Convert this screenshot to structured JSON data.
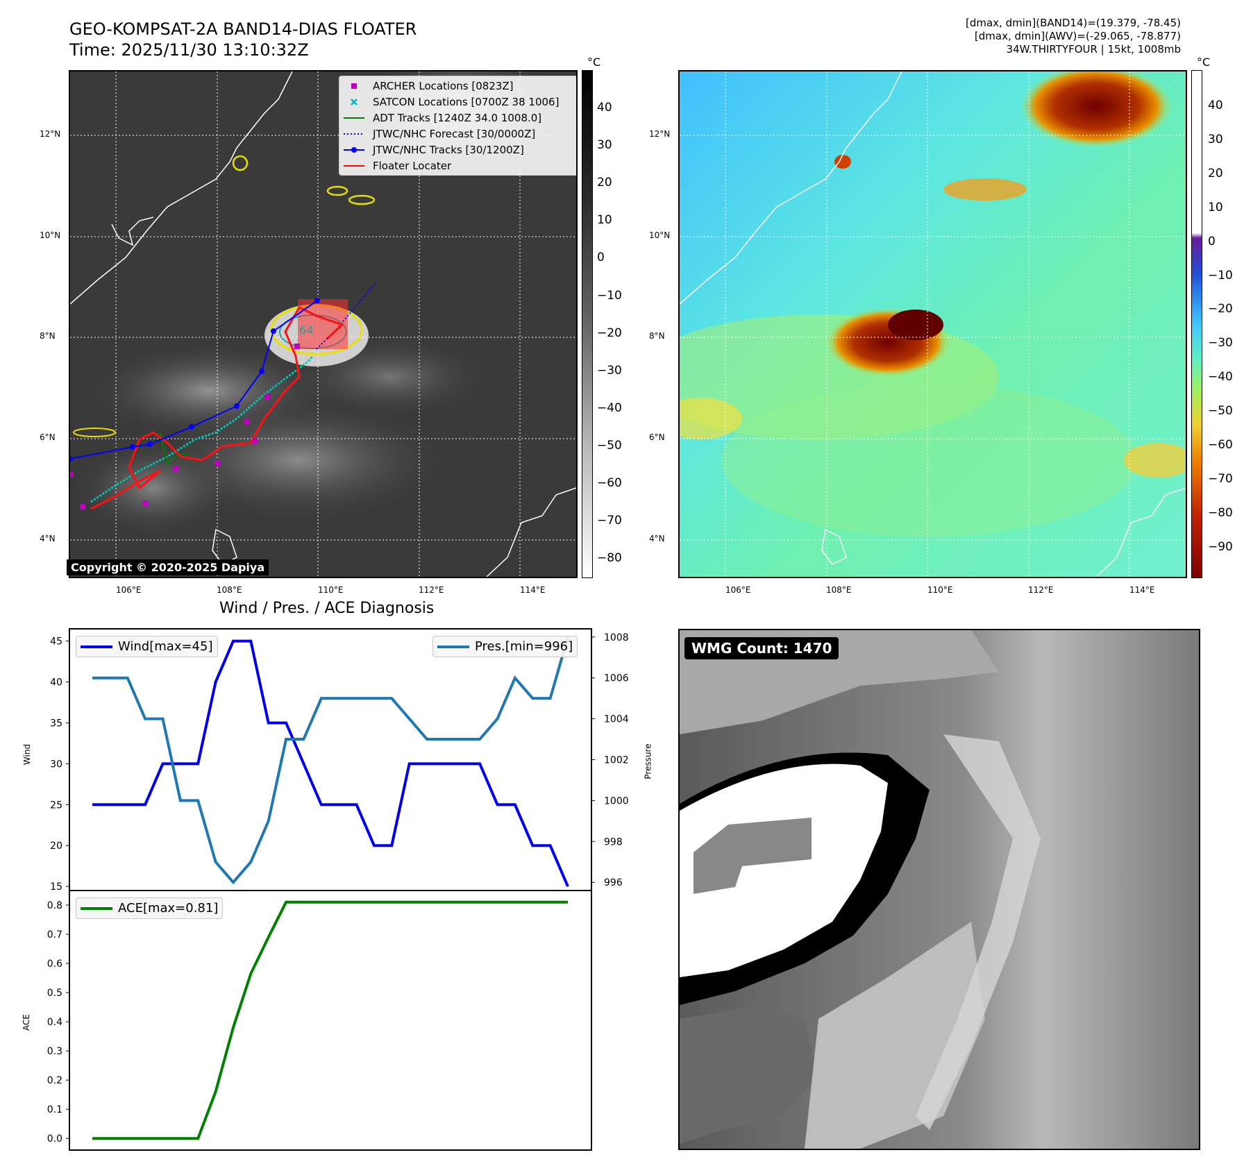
{
  "header": {
    "title_line1": "GEO-KOMPSAT-2A BAND14-DIAS FLOATER",
    "title_line2": "Time: 2025/11/30 13:10:32Z",
    "info_line1": "[dmax, dmin](BAND14)=(19.379, -78.45)",
    "info_line2": "[dmax, dmin](AWV)=(-29.065, -78.877)",
    "info_line3": "34W.THIRTYFOUR | 15kt, 1008mb"
  },
  "map": {
    "lon_ticks": [
      "106°E",
      "108°E",
      "110°E",
      "112°E",
      "114°E"
    ],
    "lat_ticks": [
      "12°N",
      "10°N",
      "8°N",
      "6°N",
      "4°N"
    ],
    "copyright": "Copyright © 2020-2025 Dapiya",
    "legend": [
      {
        "label": "ARCHER Locations [0823Z]",
        "color": "#c000c0",
        "marker": "square"
      },
      {
        "label": "SATCON Locations [0700Z 38 1006]",
        "color": "#00b8b8",
        "marker": "x"
      },
      {
        "label": "ADT Tracks [1240Z 34.0 1008.0]",
        "color": "#008000",
        "marker": "line"
      },
      {
        "label": "JTWC/NHC Forecast [30/0000Z]",
        "color": "#0000ff",
        "marker": "dotted"
      },
      {
        "label": "JTWC/NHC Tracks [30/1200Z]",
        "color": "#0000ff",
        "marker": "line-dot"
      },
      {
        "label": "Floater Locater",
        "color": "#ff0000",
        "marker": "line"
      }
    ],
    "contour_label": "64",
    "colorbar_unit": "°C",
    "colorbar_ticks": [
      "40",
      "30",
      "20",
      "10",
      "0",
      "−10",
      "−20",
      "−30",
      "−40",
      "−50",
      "−60",
      "−70",
      "−80"
    ]
  },
  "awv": {
    "colorbar_unit": "°C",
    "colorbar_ticks": [
      "40",
      "30",
      "20",
      "10",
      "0",
      "−10",
      "−20",
      "−30",
      "−40",
      "−50",
      "−60",
      "−70",
      "−80",
      "−90"
    ]
  },
  "wmg": {
    "label": "WMG Count: 1470"
  },
  "chart_data": [
    {
      "type": "line",
      "title": "Wind / Pres. / ACE Diagnosis",
      "x": [
        0,
        1,
        2,
        3,
        4,
        5,
        6,
        7,
        8,
        9,
        10,
        11,
        12,
        13,
        14,
        15,
        16,
        17,
        18,
        19,
        20,
        21,
        22,
        23,
        24,
        25,
        26,
        27
      ],
      "series": [
        {
          "name": "Wind[max=45]",
          "axis": "left",
          "color": "#0000ee",
          "values": [
            25,
            25,
            25,
            25,
            30,
            30,
            30,
            40,
            45,
            45,
            35,
            35,
            30,
            25,
            25,
            25,
            20,
            20,
            30,
            30,
            30,
            30,
            30,
            25,
            25,
            20,
            20,
            15
          ]
        },
        {
          "name": "Pres.[min=996]",
          "axis": "right",
          "color": "#1f77b4",
          "values": [
            1006,
            1006,
            1006,
            1004,
            1004,
            1000,
            1000,
            997,
            996,
            997,
            999,
            1003,
            1003,
            1005,
            1005,
            1005,
            1005,
            1005,
            1004,
            1003,
            1003,
            1003,
            1003,
            1004,
            1006,
            1005,
            1005,
            1008
          ]
        }
      ],
      "ylabel": "Wind",
      "ylabel_right": "Pressure",
      "ylim": [
        14.5,
        46.5
      ],
      "ylim_right": [
        995.6,
        1008.4
      ],
      "yticks": [
        15,
        20,
        25,
        30,
        35,
        40,
        45
      ],
      "yticks_right": [
        996,
        998,
        1000,
        1002,
        1004,
        1006,
        1008
      ]
    },
    {
      "type": "line",
      "x": [
        0,
        1,
        2,
        3,
        4,
        5,
        6,
        7,
        8,
        9,
        10,
        11,
        12,
        13,
        14,
        15,
        16,
        17,
        18,
        19,
        20,
        21,
        22,
        23,
        24,
        25,
        26,
        27
      ],
      "series": [
        {
          "name": "ACE[max=0.81]",
          "color": "#008000",
          "values": [
            0,
            0,
            0,
            0,
            0,
            0,
            0,
            0.16,
            0.38,
            0.565,
            0.69,
            0.81,
            0.81,
            0.81,
            0.81,
            0.81,
            0.81,
            0.81,
            0.81,
            0.81,
            0.81,
            0.81,
            0.81,
            0.81,
            0.81,
            0.81,
            0.81,
            0.81
          ]
        }
      ],
      "ylabel": "ACE",
      "ylim": [
        -0.04,
        0.85
      ],
      "yticks": [
        "0.0",
        "0.1",
        "0.2",
        "0.3",
        "0.4",
        "0.5",
        "0.6",
        "0.7",
        "0.8"
      ]
    }
  ]
}
